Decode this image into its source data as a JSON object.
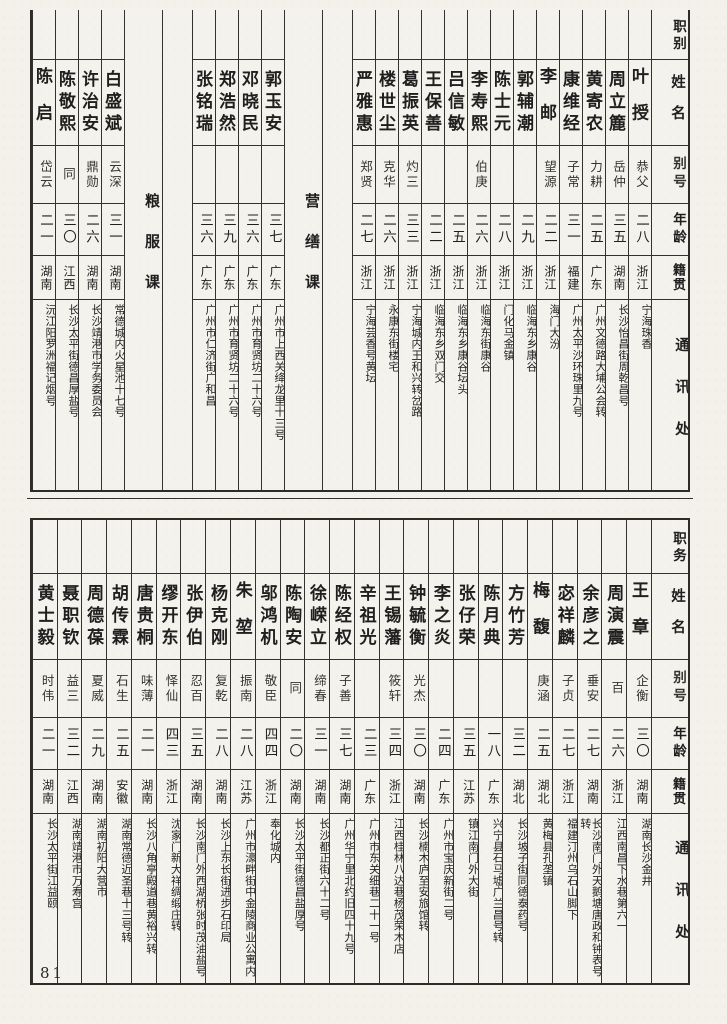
{
  "page": {
    "number": "81"
  },
  "tables": [
    {
      "position": "top",
      "header": {
        "duty": "职别",
        "name": "姓名",
        "alias": "别号",
        "age": "年龄",
        "origin": "籍贯",
        "address": "通讯处"
      },
      "columns": [
        {
          "type": "person",
          "duty": "",
          "name": "叶授",
          "alias": "恭父",
          "age": "二八",
          "origin": "浙江",
          "address": "宁海珠香"
        },
        {
          "type": "person",
          "duty": "",
          "name": "周立簏",
          "alias": "岳仲",
          "age": "三五",
          "origin": "湖南",
          "address": "长沙怡昌街周乾昌号"
        },
        {
          "type": "person",
          "duty": "",
          "name": "黄寄农",
          "alias": "力耕",
          "age": "二五",
          "origin": "广东",
          "address": "广州文德路大埔公会转"
        },
        {
          "type": "person",
          "duty": "",
          "name": "康维经",
          "alias": "子常",
          "age": "三一",
          "origin": "福建",
          "address": "广州太平沙环珠里九号"
        },
        {
          "type": "person",
          "duty": "",
          "name": "李邮",
          "alias": "望源",
          "age": "二二",
          "origin": "浙江",
          "address": "海门大汾"
        },
        {
          "type": "person",
          "duty": "",
          "name": "郭辅潮",
          "alias": "",
          "age": "二九",
          "origin": "浙江",
          "address": "临海东乡康谷"
        },
        {
          "type": "person",
          "duty": "",
          "name": "陈士元",
          "alias": "",
          "age": "二八",
          "origin": "浙江",
          "address": "门化马金镇"
        },
        {
          "type": "person",
          "duty": "",
          "name": "李寿熙",
          "alias": "伯庚",
          "age": "二六",
          "origin": "浙江",
          "address": "临海东街康谷"
        },
        {
          "type": "person",
          "duty": "",
          "name": "吕信敏",
          "alias": "",
          "age": "二五",
          "origin": "浙江",
          "address": "临海东乡康谷坛头"
        },
        {
          "type": "person",
          "duty": "",
          "name": "王保善",
          "alias": "",
          "age": "二二",
          "origin": "浙江",
          "address": "临海东乡双门交"
        },
        {
          "type": "person",
          "duty": "",
          "name": "葛振英",
          "alias": "灼三",
          "age": "三三",
          "origin": "浙江",
          "address": "宁海城内王和兴转岔路"
        },
        {
          "type": "person",
          "duty": "",
          "name": "楼世尘",
          "alias": "克华",
          "age": "二六",
          "origin": "浙江",
          "address": "永康东街楼宅"
        },
        {
          "type": "person",
          "duty": "",
          "name": "严雅惠",
          "alias": "郑贤",
          "age": "二七",
          "origin": "浙江",
          "address": "宁海芸香号黄坛"
        },
        {
          "type": "blank"
        },
        {
          "type": "section",
          "label": "营缮课"
        },
        {
          "type": "person",
          "duty": "",
          "name": "郭玉安",
          "alias": "",
          "age": "三七",
          "origin": "广东",
          "address": "广州市上西关绛龙里十三号"
        },
        {
          "type": "person",
          "duty": "",
          "name": "邓晓民",
          "alias": "",
          "age": "三六",
          "origin": "广东",
          "address": "广州市育贤坊二十六号"
        },
        {
          "type": "person",
          "duty": "",
          "name": "郑浩然",
          "alias": "",
          "age": "三九",
          "origin": "广东",
          "address": "广州市育贤坊二十六号"
        },
        {
          "type": "person",
          "duty": "",
          "name": "张铭瑞",
          "alias": "",
          "age": "三六",
          "origin": "广东",
          "address": "广州市仁济街广和昌"
        },
        {
          "type": "blank"
        },
        {
          "type": "section",
          "label": "粮服课"
        },
        {
          "type": "person",
          "duty": "",
          "name": "白盛斌",
          "alias": "云深",
          "age": "三一",
          "origin": "湖南",
          "address": "常德城内火星池十七号"
        },
        {
          "type": "person",
          "duty": "",
          "name": "许治安",
          "alias": "鼎勋",
          "age": "二六",
          "origin": "湖南",
          "address": "长沙靖港市学务委员会"
        },
        {
          "type": "person",
          "duty": "",
          "name": "陈敬熙",
          "alias": "同",
          "age": "三〇",
          "origin": "江西",
          "address": "长沙太平街德昌厚盐号"
        },
        {
          "type": "person",
          "duty": "",
          "name": "陈启",
          "alias": "岱云",
          "age": "二一",
          "origin": "湖南",
          "address": "沅江阳罗洲福记烟号"
        }
      ]
    },
    {
      "position": "bottom",
      "header": {
        "duty": "职务",
        "name": "姓名",
        "alias": "别号",
        "age": "年龄",
        "origin": "籍贯",
        "address": "通讯处"
      },
      "columns": [
        {
          "type": "person",
          "duty": "",
          "name": "王章",
          "alias": "企衡",
          "age": "三〇",
          "origin": "湖南",
          "address": "湖南长沙金井"
        },
        {
          "type": "person",
          "duty": "",
          "name": "周演震",
          "alias": "百",
          "age": "二六",
          "origin": "浙江",
          "address": "江西南昌下水巷第六一"
        },
        {
          "type": "person",
          "duty": "",
          "name": "余彦之",
          "alias": "垂安",
          "age": "二七",
          "origin": "湖南",
          "address": "长沙南门外天鹅塘唐政和钟表号转"
        },
        {
          "type": "person",
          "duty": "",
          "name": "宓祥麟",
          "alias": "子贞",
          "age": "二七",
          "origin": "浙江",
          "address": "福建汀州乌石山脚下"
        },
        {
          "type": "person",
          "duty": "",
          "name": "梅馥",
          "alias": "庚涵",
          "age": "二五",
          "origin": "湖北",
          "address": "黄梅县孔垄镇"
        },
        {
          "type": "person",
          "duty": "",
          "name": "方竹芳",
          "alias": "",
          "age": "三二",
          "origin": "湖北",
          "address": "长沙坡子街同德泰药号"
        },
        {
          "type": "person",
          "duty": "",
          "name": "陈月典",
          "alias": "",
          "age": "一八",
          "origin": "广东",
          "address": "兴宁县石马墟广兰昌号转"
        },
        {
          "type": "person",
          "duty": "",
          "name": "张仔荣",
          "alias": "",
          "age": "三五",
          "origin": "江苏",
          "address": "镇江南门外大街"
        },
        {
          "type": "person",
          "duty": "",
          "name": "李之炎",
          "alias": "",
          "age": "二四",
          "origin": "广东",
          "address": "广州市宝庆新街二号"
        },
        {
          "type": "person",
          "duty": "",
          "name": "钟毓衡",
          "alias": "光杰",
          "age": "三〇",
          "origin": "湖南",
          "address": "长沙楠木庐至安旅馆转"
        },
        {
          "type": "person",
          "duty": "",
          "name": "王锡藩",
          "alias": "筱轩",
          "age": "三四",
          "origin": "浙江",
          "address": "江西桂林八达巷杨茂荣木店"
        },
        {
          "type": "person",
          "duty": "",
          "name": "辛祖光",
          "alias": "",
          "age": "二三",
          "origin": "广东",
          "address": "广州市东关细巷二十一号"
        },
        {
          "type": "person",
          "duty": "",
          "name": "陈经权",
          "alias": "子善",
          "age": "三七",
          "origin": "湖南",
          "address": "广州华宁里北约旧四十九号"
        },
        {
          "type": "person",
          "duty": "",
          "name": "徐嵘立",
          "alias": "缔春",
          "age": "三一",
          "origin": "湖南",
          "address": "长沙都正街六十二号"
        },
        {
          "type": "person",
          "duty": "",
          "name": "陈陶安",
          "alias": "同",
          "age": "二〇",
          "origin": "湖南",
          "address": "长沙太平街德昌盐厚号"
        },
        {
          "type": "person",
          "duty": "",
          "name": "邬鸿机",
          "alias": "敬臣",
          "age": "四四",
          "origin": "浙江",
          "address": "奉化城内"
        },
        {
          "type": "person",
          "duty": "",
          "name": "朱堃",
          "alias": "振南",
          "age": "二八",
          "origin": "江苏",
          "address": "广州市濠畔街中金陵商业公寓内"
        },
        {
          "type": "person",
          "duty": "",
          "name": "杨克刚",
          "alias": "复乾",
          "age": "二八",
          "origin": "湖南",
          "address": "长沙上东长街进步石印局"
        },
        {
          "type": "person",
          "duty": "",
          "name": "张伊伯",
          "alias": "忍百",
          "age": "三五",
          "origin": "湖南",
          "address": "长沙南门外西湖桥张时茂油盐号"
        },
        {
          "type": "person",
          "duty": "",
          "name": "缪开东",
          "alias": "怿仙",
          "age": "四三",
          "origin": "浙江",
          "address": "沈家门新大祥绸缎庄转"
        },
        {
          "type": "person",
          "duty": "",
          "name": "唐贵桐",
          "alias": "味薄",
          "age": "二一",
          "origin": "湖南",
          "address": "长沙八角亭殿道巷黄裕兴转"
        },
        {
          "type": "person",
          "duty": "",
          "name": "胡传霖",
          "alias": "石生",
          "age": "二五",
          "origin": "安徽",
          "address": "湖南常德近圣巷十三号转"
        },
        {
          "type": "person",
          "duty": "",
          "name": "周德葆",
          "alias": "夏威",
          "age": "二九",
          "origin": "湖南",
          "address": "湖南初阳大营市"
        },
        {
          "type": "person",
          "duty": "",
          "name": "聂职钦",
          "alias": "益三",
          "age": "三二",
          "origin": "江西",
          "address": "湖南靖港市万寿宫"
        },
        {
          "type": "person",
          "duty": "",
          "name": "黄士毅",
          "alias": "时伟",
          "age": "二一",
          "origin": "湖南",
          "address": "长沙太平街江益颐"
        }
      ]
    }
  ]
}
